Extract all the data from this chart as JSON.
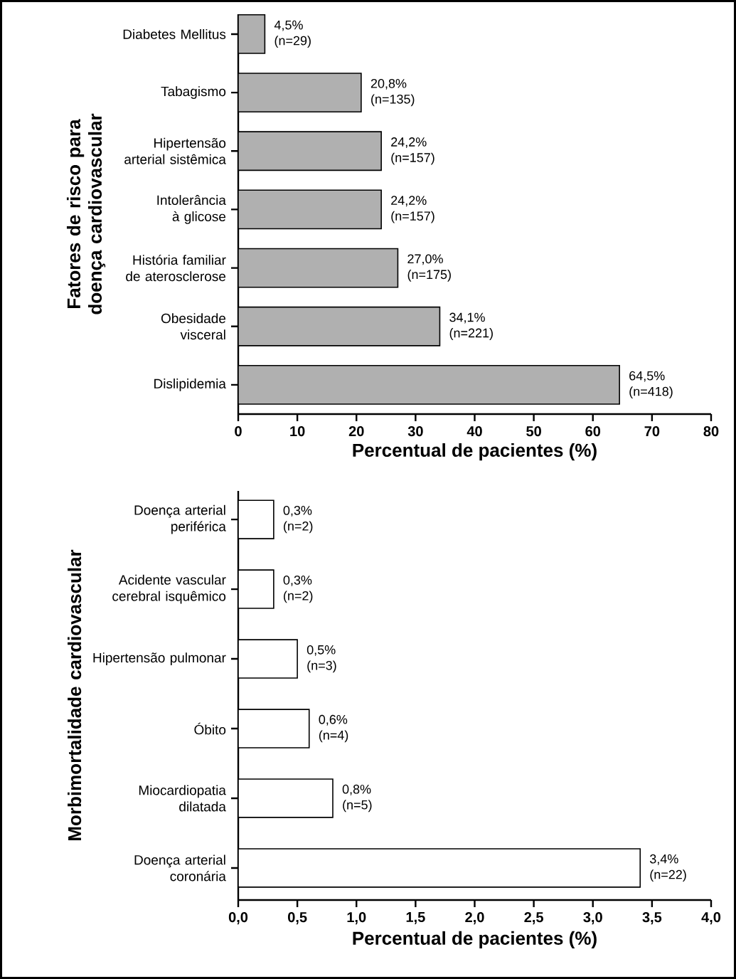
{
  "chart_data": [
    {
      "type": "bar",
      "orientation": "horizontal",
      "ylabel": "Fatores de risco para doença cardiovascular",
      "xlabel": "Percentual de pacientes (%)",
      "categories": [
        "Diabetes Mellitus",
        "Tabagismo",
        "Hipertensão arterial sistêmica",
        "Intolerância à glicose",
        "História familiar de aterosclerose",
        "Obesidade visceral",
        "Dislipidemia"
      ],
      "values": [
        4.5,
        20.8,
        24.2,
        24.2,
        27.0,
        34.1,
        64.5
      ],
      "value_labels": [
        "4,5% (n=29)",
        "20,8% (n=135)",
        "24,2% (n=157)",
        "24,2% (n=157)",
        "27,0% (n=175)",
        "34,1% (n=221)",
        "64,5% (n=418)"
      ],
      "color": "#b0b0b0",
      "xlim": [
        0,
        80
      ],
      "xticks": [
        0,
        10,
        20,
        30,
        40,
        50,
        60,
        70,
        80
      ]
    },
    {
      "type": "bar",
      "orientation": "horizontal",
      "ylabel": "Morbimortalidade cardiovascular",
      "xlabel": "Percentual de pacientes (%)",
      "categories": [
        "Doença arterial periférica",
        "Acidente vascular cerebral isquêmico",
        "Hipertensão pulmonar",
        "Óbito",
        "Miocardiopatia dilatada",
        "Doença arterial coronária"
      ],
      "values": [
        0.3,
        0.3,
        0.5,
        0.6,
        0.8,
        3.4
      ],
      "value_labels": [
        "0,3% (n=2)",
        "0,3% (n=2)",
        "0,5% (n=3)",
        "0,6% (n=4)",
        "0,8% (n=5)",
        "3,4% (n=22)"
      ],
      "color": "#ffffff",
      "xlim": [
        0,
        4.0
      ],
      "xticks": [
        {
          "value": 0,
          "label": "0,0"
        },
        {
          "value": 0.5,
          "label": "0,5"
        },
        {
          "value": 1.0,
          "label": "1,0"
        },
        {
          "value": 1.5,
          "label": "1,5"
        },
        {
          "value": 2.0,
          "label": "2,0"
        },
        {
          "value": 2.5,
          "label": "2,5"
        },
        {
          "value": 3.0,
          "label": "3,0"
        },
        {
          "value": 3.5,
          "label": "3,5"
        },
        {
          "value": 4.0,
          "label": "4,0"
        }
      ]
    }
  ]
}
